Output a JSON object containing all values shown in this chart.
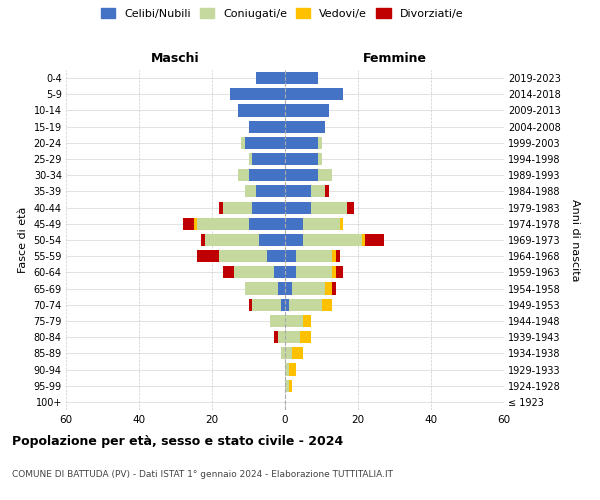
{
  "age_groups": [
    "100+",
    "95-99",
    "90-94",
    "85-89",
    "80-84",
    "75-79",
    "70-74",
    "65-69",
    "60-64",
    "55-59",
    "50-54",
    "45-49",
    "40-44",
    "35-39",
    "30-34",
    "25-29",
    "20-24",
    "15-19",
    "10-14",
    "5-9",
    "0-4"
  ],
  "birth_years": [
    "≤ 1923",
    "1924-1928",
    "1929-1933",
    "1934-1938",
    "1939-1943",
    "1944-1948",
    "1949-1953",
    "1954-1958",
    "1959-1963",
    "1964-1968",
    "1969-1973",
    "1974-1978",
    "1979-1983",
    "1984-1988",
    "1989-1993",
    "1994-1998",
    "1999-2003",
    "2004-2008",
    "2009-2013",
    "2014-2018",
    "2019-2023"
  ],
  "colors": {
    "celibe": "#4472c4",
    "coniugato": "#c5d89d",
    "vedovo": "#ffc000",
    "divorziato": "#c00000"
  },
  "male": {
    "celibe": [
      0,
      0,
      0,
      0,
      0,
      0,
      1,
      2,
      3,
      5,
      7,
      10,
      9,
      8,
      10,
      9,
      11,
      10,
      13,
      15,
      8
    ],
    "coniugato": [
      0,
      0,
      0,
      1,
      2,
      4,
      8,
      9,
      11,
      13,
      15,
      14,
      8,
      3,
      3,
      1,
      1,
      0,
      0,
      0,
      0
    ],
    "vedovo": [
      0,
      0,
      0,
      0,
      0,
      0,
      0,
      0,
      0,
      0,
      0,
      1,
      0,
      0,
      0,
      0,
      0,
      0,
      0,
      0,
      0
    ],
    "divorziato": [
      0,
      0,
      0,
      0,
      1,
      0,
      1,
      0,
      3,
      6,
      1,
      3,
      1,
      0,
      0,
      0,
      0,
      0,
      0,
      0,
      0
    ]
  },
  "female": {
    "nubile": [
      0,
      0,
      0,
      0,
      0,
      0,
      1,
      2,
      3,
      3,
      5,
      5,
      7,
      7,
      9,
      9,
      9,
      11,
      12,
      16,
      9
    ],
    "coniugata": [
      0,
      1,
      1,
      2,
      4,
      5,
      9,
      9,
      10,
      10,
      16,
      10,
      10,
      4,
      4,
      1,
      1,
      0,
      0,
      0,
      0
    ],
    "vedova": [
      0,
      1,
      2,
      3,
      3,
      2,
      3,
      2,
      1,
      1,
      1,
      1,
      0,
      0,
      0,
      0,
      0,
      0,
      0,
      0,
      0
    ],
    "divorziata": [
      0,
      0,
      0,
      0,
      0,
      0,
      0,
      1,
      2,
      1,
      5,
      0,
      2,
      1,
      0,
      0,
      0,
      0,
      0,
      0,
      0
    ]
  },
  "xlim": 60,
  "title_main": "Popolazione per età, sesso e stato civile - 2024",
  "title_sub": "COMUNE DI BATTUDA (PV) - Dati ISTAT 1° gennaio 2024 - Elaborazione TUTTITALIA.IT",
  "ylabel_left": "Fasce di età",
  "ylabel_right": "Anni di nascita",
  "xlabel_left": "Maschi",
  "xlabel_right": "Femmine",
  "legend_labels": [
    "Celibi/Nubili",
    "Coniugati/e",
    "Vedovi/e",
    "Divorziati/e"
  ]
}
